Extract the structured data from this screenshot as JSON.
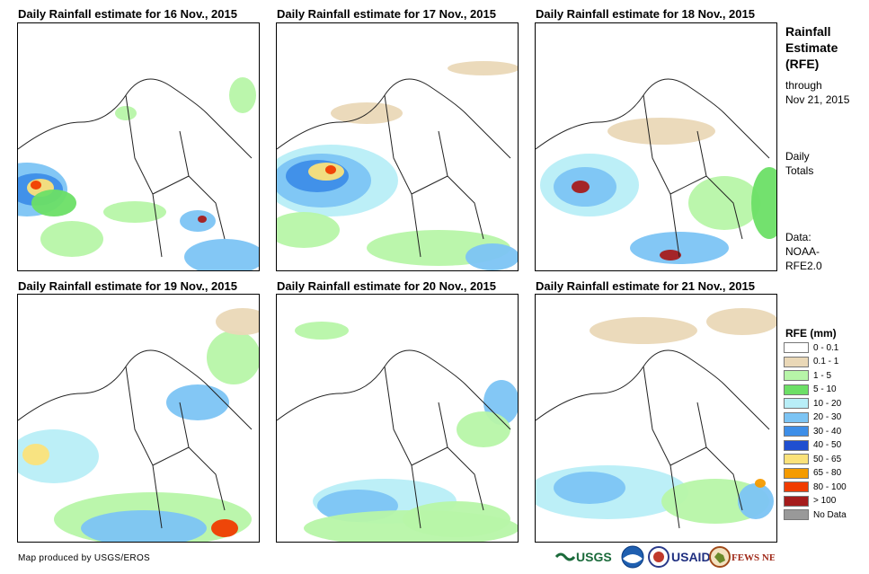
{
  "panels": [
    {
      "title": "Daily Rainfall estimate for 16 Nov., 2015"
    },
    {
      "title": "Daily Rainfall estimate for 17 Nov., 2015"
    },
    {
      "title": "Daily Rainfall estimate for 18 Nov., 2015"
    },
    {
      "title": "Daily Rainfall estimate for 19 Nov., 2015"
    },
    {
      "title": "Daily Rainfall estimate for 20 Nov., 2015"
    },
    {
      "title": "Daily Rainfall estimate for 21 Nov., 2015"
    }
  ],
  "sidebar": {
    "heading_1": "Rainfall",
    "heading_2": "Estimate",
    "heading_3": "(RFE)",
    "through_1": "through",
    "through_2": "Nov 21, 2015",
    "totals_1": "Daily",
    "totals_2": "Totals",
    "data_1": "Data:",
    "data_2": "NOAA-",
    "data_3": "RFE2.0"
  },
  "legend": {
    "title": "RFE (mm)",
    "items": [
      {
        "label": "0 - 0.1",
        "color": "#ffffff"
      },
      {
        "label": "0.1 - 1",
        "color": "#ead8b7"
      },
      {
        "label": "1 - 5",
        "color": "#b7f5a8"
      },
      {
        "label": "5 - 10",
        "color": "#6cdf66"
      },
      {
        "label": "10 - 20",
        "color": "#b8eef7"
      },
      {
        "label": "20 - 30",
        "color": "#7cc4f4"
      },
      {
        "label": "30 - 40",
        "color": "#3d8ee8"
      },
      {
        "label": "40 - 50",
        "color": "#1f4fd0"
      },
      {
        "label": "50 - 65",
        "color": "#fbe27a"
      },
      {
        "label": "65 - 80",
        "color": "#f59b00"
      },
      {
        "label": "80 - 100",
        "color": "#f03c00"
      },
      {
        "label": "> 100",
        "color": "#a51c1c"
      },
      {
        "label": "No Data",
        "color": "#999999"
      }
    ]
  },
  "footer": {
    "credit": "Map produced by USGS/EROS",
    "logo_usgs": "USGS",
    "logo_usaid": "USAID",
    "logo_fews": "FEWS NET"
  }
}
